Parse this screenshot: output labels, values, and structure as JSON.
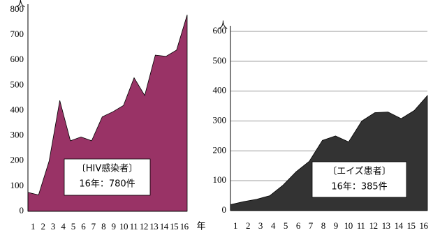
{
  "chart_data": [
    {
      "type": "area",
      "y_unit_label": "人",
      "x_unit_label": "年",
      "categories": [
        "1",
        "2",
        "3",
        "4",
        "5",
        "6",
        "7",
        "8",
        "9",
        "10",
        "11",
        "12",
        "13",
        "14",
        "15",
        "16"
      ],
      "values": [
        75,
        65,
        200,
        440,
        280,
        295,
        280,
        375,
        395,
        420,
        530,
        460,
        620,
        615,
        640,
        780
      ],
      "color": "#993366",
      "ylim": [
        0,
        800
      ],
      "yticks": [
        0,
        100,
        200,
        300,
        400,
        500,
        600,
        700,
        800
      ],
      "grid": false,
      "annotation": [
        "〔HIV感染者〕",
        "16年：780件"
      ]
    },
    {
      "type": "area",
      "y_unit_label": "人",
      "x_unit_label": "年",
      "categories": [
        "1",
        "2",
        "3",
        "4",
        "5",
        "6",
        "7",
        "8",
        "9",
        "10",
        "11",
        "12",
        "13",
        "14",
        "15",
        "16"
      ],
      "values": [
        20,
        30,
        38,
        50,
        85,
        130,
        165,
        235,
        250,
        230,
        300,
        328,
        330,
        308,
        335,
        385
      ],
      "color": "#333333",
      "ylim": [
        0,
        600
      ],
      "yticks": [
        0,
        100,
        200,
        300,
        400,
        500,
        600
      ],
      "grid": true,
      "annotation": [
        "〔エイズ患者〕",
        "16年：385件"
      ]
    }
  ]
}
